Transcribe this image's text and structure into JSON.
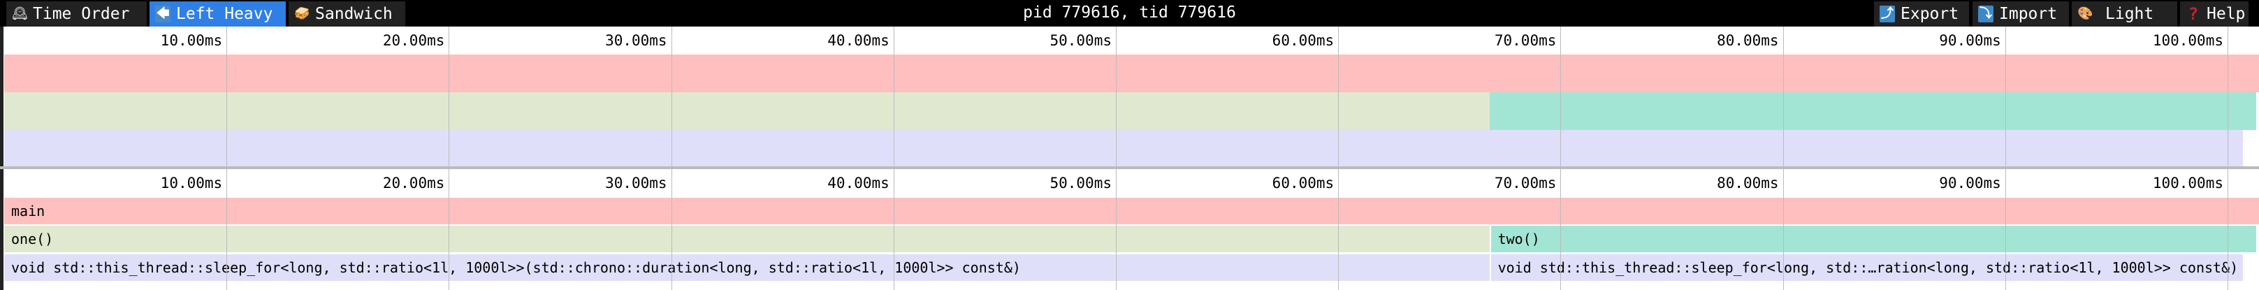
{
  "toolbar": {
    "tabs": [
      {
        "label": "Time Order",
        "icon": "mantel-clock-icon",
        "glyph": "🕰",
        "active": false
      },
      {
        "label": "Left Heavy",
        "icon": "left-arrow-icon",
        "glyph": "🡄",
        "active": true
      },
      {
        "label": "Sandwich",
        "icon": "sandwich-icon",
        "glyph": "🥪",
        "active": false
      }
    ],
    "title": "pid 779616, tid 779616",
    "actions": [
      {
        "label": "Export",
        "icon": "export-icon",
        "glyph": "⤴"
      },
      {
        "label": "Import",
        "icon": "import-icon",
        "glyph": "⤵"
      },
      {
        "label": "Light",
        "icon": "palette-icon",
        "glyph": "🎨"
      },
      {
        "label": "Help",
        "icon": "help-icon",
        "glyph": "?"
      }
    ]
  },
  "axis": {
    "unit": "ms",
    "ticks": [
      "10.00ms",
      "20.00ms",
      "30.00ms",
      "40.00ms",
      "50.00ms",
      "60.00ms",
      "70.00ms",
      "80.00ms",
      "90.00ms",
      "100.00ms"
    ],
    "tick_values": [
      10,
      20,
      30,
      40,
      50,
      60,
      70,
      80,
      90,
      100
    ],
    "visible_range_ms": [
      0,
      101.4
    ]
  },
  "colors": {
    "main": "#ffbfbf",
    "one": "#e0e9cf",
    "two": "#a3e5d5",
    "sleep": "#e0dffa",
    "active_tab": "#2f7fe6"
  },
  "flamegraph": {
    "frames": [
      {
        "label": "main",
        "depth": 0,
        "start_ms": 0,
        "end_ms": 101.4,
        "color": "main"
      },
      {
        "label": "one()",
        "depth": 1,
        "start_ms": 0,
        "end_ms": 66.8,
        "color": "one"
      },
      {
        "label": "two()",
        "depth": 1,
        "start_ms": 66.8,
        "end_ms": 101.3,
        "color": "two"
      },
      {
        "label": "void std::this_thread::sleep_for<long, std::ratio<1l, 1000l>>(std::chrono::duration<long, std::ratio<1l, 1000l>> const&)",
        "depth": 2,
        "start_ms": 0,
        "end_ms": 66.8,
        "color": "sleep"
      },
      {
        "label": "void std::this_thread::sleep_for<long, std::…ration<long, std::ratio<1l, 1000l>> const&)",
        "depth": 2,
        "start_ms": 66.8,
        "end_ms": 100.7,
        "color": "sleep"
      }
    ]
  }
}
